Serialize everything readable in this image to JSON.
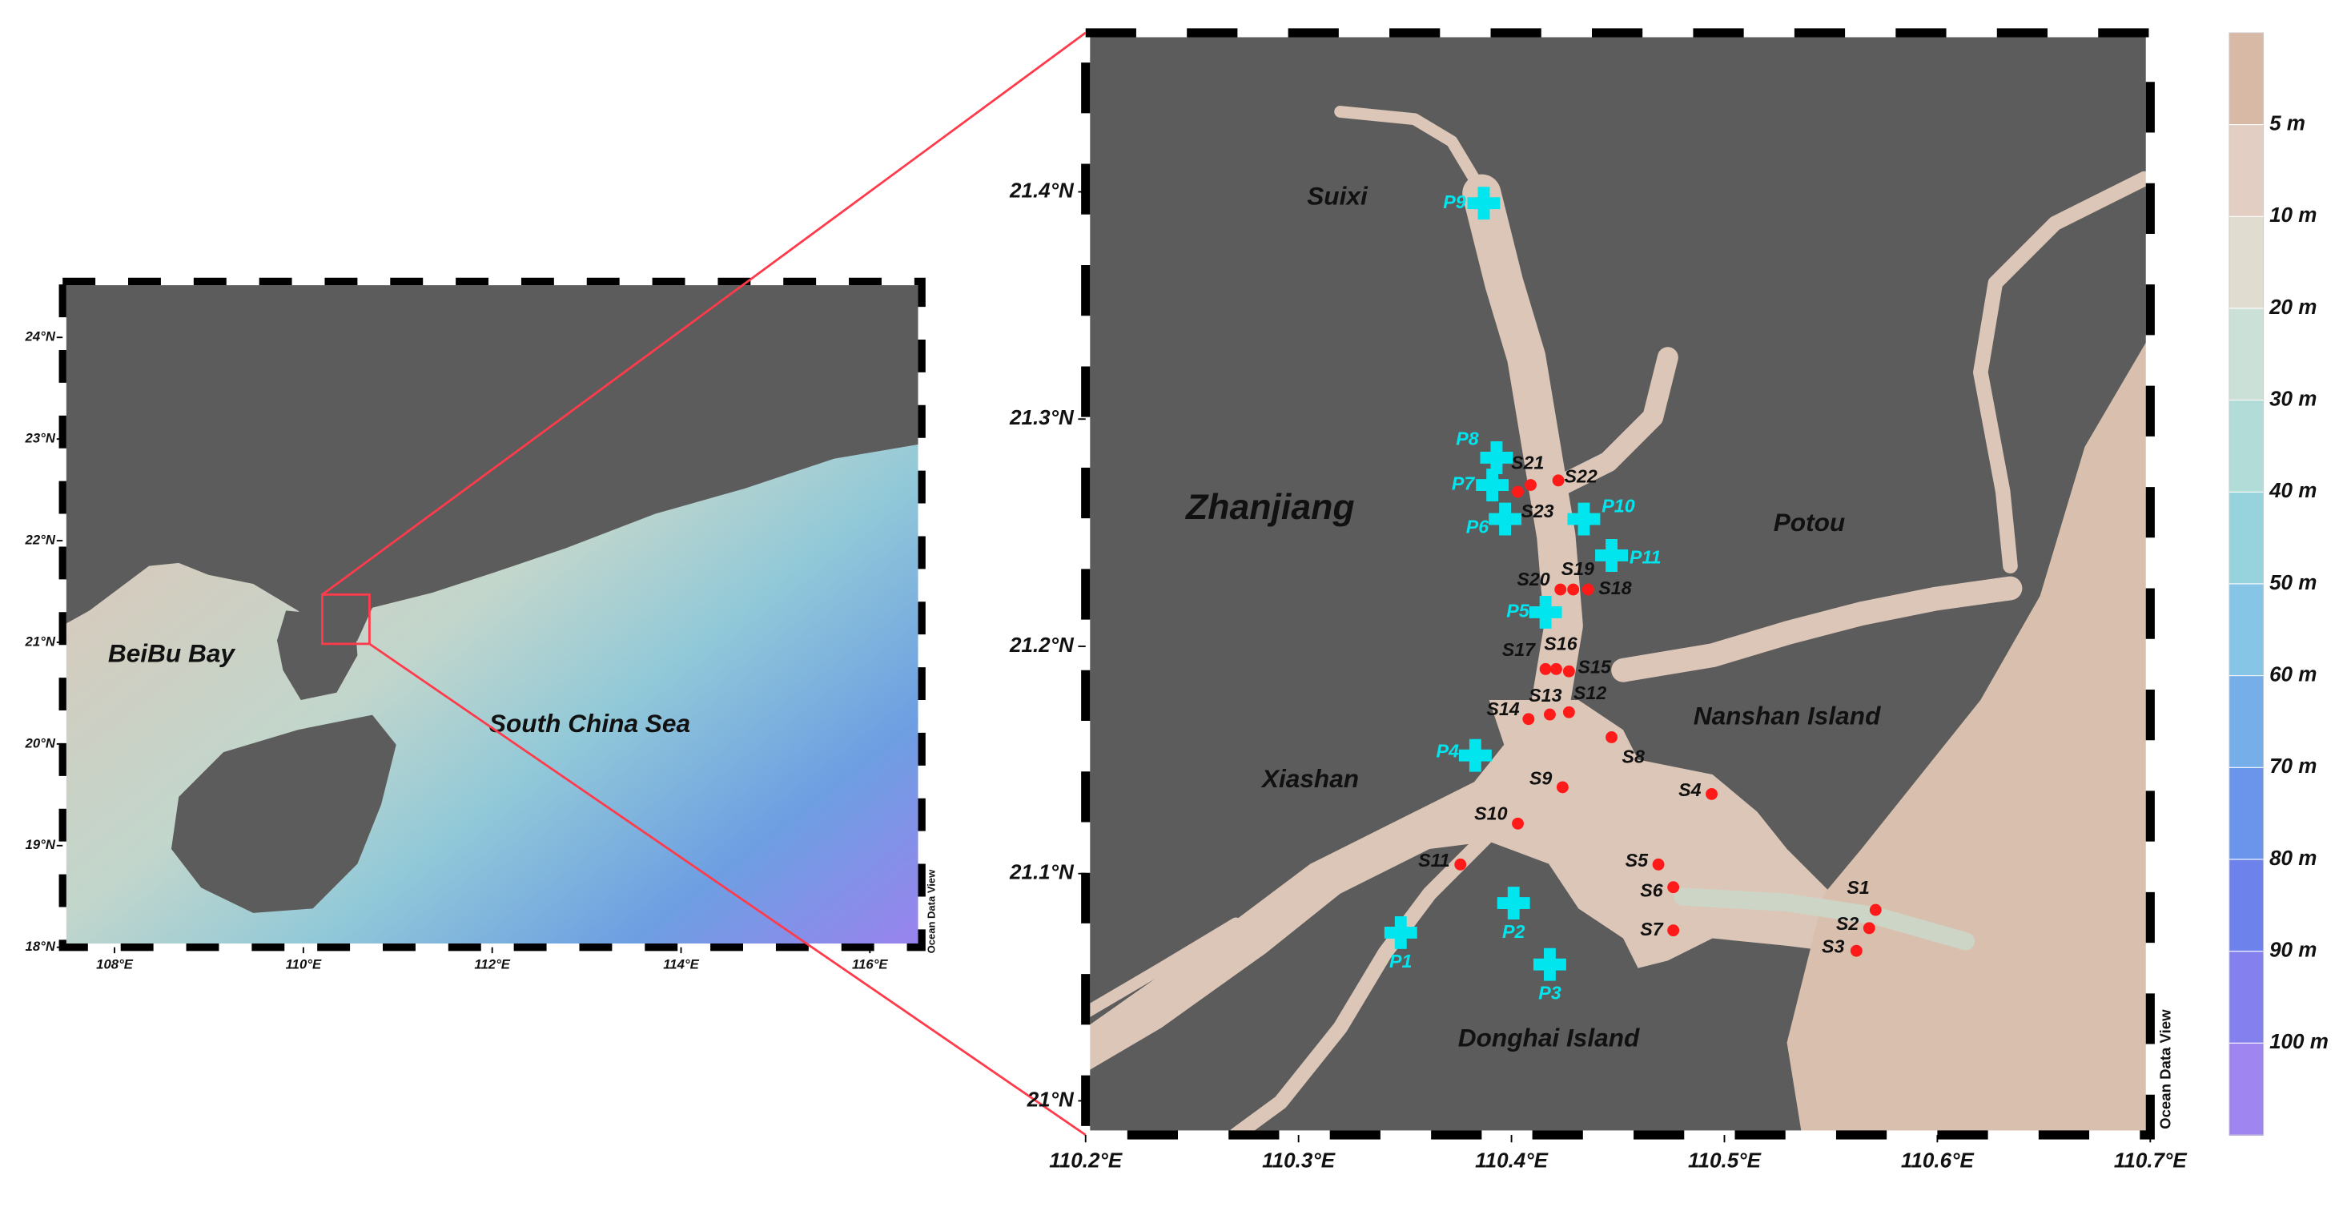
{
  "overview_map": {
    "xlim": [
      107.45,
      116.55
    ],
    "ylim": [
      18,
      24.55
    ],
    "xticks": [
      {
        "value": 108,
        "label": "108°E"
      },
      {
        "value": 110,
        "label": "110°E"
      },
      {
        "value": 112,
        "label": "112°E"
      },
      {
        "value": 114,
        "label": "114°E"
      },
      {
        "value": 116,
        "label": "116°E"
      }
    ],
    "yticks": [
      {
        "value": 18,
        "label": "18°N"
      },
      {
        "value": 19,
        "label": "19°N"
      },
      {
        "value": 20,
        "label": "20°N"
      },
      {
        "value": 21,
        "label": "21°N"
      },
      {
        "value": 22,
        "label": "22°N"
      },
      {
        "value": 23,
        "label": "23°N"
      },
      {
        "value": 24,
        "label": "24°N"
      }
    ],
    "labels": [
      "BeiBu Bay",
      "South China Sea"
    ],
    "credit": "Ocean Data View"
  },
  "detail_map": {
    "xlim": [
      110.2,
      110.7
    ],
    "ylim": [
      20.985,
      21.47
    ],
    "xticks": [
      {
        "value": 110.2,
        "label": "110.2°E"
      },
      {
        "value": 110.3,
        "label": "110.3°E"
      },
      {
        "value": 110.4,
        "label": "110.4°E"
      },
      {
        "value": 110.5,
        "label": "110.5°E"
      },
      {
        "value": 110.6,
        "label": "110.6°E"
      },
      {
        "value": 110.7,
        "label": "110.7°E"
      }
    ],
    "yticks": [
      {
        "value": 21.0,
        "label": "21°N"
      },
      {
        "value": 21.1,
        "label": "21.1°N"
      },
      {
        "value": 21.2,
        "label": "21.2°N"
      },
      {
        "value": 21.3,
        "label": "21.3°N"
      },
      {
        "value": 21.4,
        "label": "21.4°N"
      }
    ],
    "places": [
      "Suixi",
      "Zhanjiang",
      "Potou",
      "Nanshan Island",
      "Xiashan",
      "Donghai Island"
    ],
    "s_sites": {
      "color": "#ff1a1a",
      "points": [
        {
          "name": "S1",
          "lon": 110.571,
          "lat": 21.084
        },
        {
          "name": "S2",
          "lon": 110.568,
          "lat": 21.076
        },
        {
          "name": "S3",
          "lon": 110.562,
          "lat": 21.066
        },
        {
          "name": "S4",
          "lon": 110.494,
          "lat": 21.135
        },
        {
          "name": "S5",
          "lon": 110.469,
          "lat": 21.104
        },
        {
          "name": "S6",
          "lon": 110.476,
          "lat": 21.094
        },
        {
          "name": "S7",
          "lon": 110.476,
          "lat": 21.075
        },
        {
          "name": "S8",
          "lon": 110.447,
          "lat": 21.16
        },
        {
          "name": "S9",
          "lon": 110.424,
          "lat": 21.138
        },
        {
          "name": "S10",
          "lon": 110.403,
          "lat": 21.122
        },
        {
          "name": "S11",
          "lon": 110.376,
          "lat": 21.104
        },
        {
          "name": "S12",
          "lon": 110.427,
          "lat": 21.171
        },
        {
          "name": "S13",
          "lon": 110.418,
          "lat": 21.17
        },
        {
          "name": "S14",
          "lon": 110.408,
          "lat": 21.168
        },
        {
          "name": "S15",
          "lon": 110.427,
          "lat": 21.189
        },
        {
          "name": "S16",
          "lon": 110.421,
          "lat": 21.19
        },
        {
          "name": "S17",
          "lon": 110.416,
          "lat": 21.19
        },
        {
          "name": "S18",
          "lon": 110.436,
          "lat": 21.225
        },
        {
          "name": "S19",
          "lon": 110.429,
          "lat": 21.225
        },
        {
          "name": "S20",
          "lon": 110.423,
          "lat": 21.225
        },
        {
          "name": "S21",
          "lon": 110.409,
          "lat": 21.271
        },
        {
          "name": "S22",
          "lon": 110.422,
          "lat": 21.273
        },
        {
          "name": "S23",
          "lon": 110.403,
          "lat": 21.268
        }
      ]
    },
    "p_sites": {
      "color": "#00e5ee",
      "points": [
        {
          "name": "P1",
          "lon": 110.348,
          "lat": 21.074
        },
        {
          "name": "P2",
          "lon": 110.401,
          "lat": 21.087
        },
        {
          "name": "P3",
          "lon": 110.418,
          "lat": 21.06
        },
        {
          "name": "P4",
          "lon": 110.383,
          "lat": 21.152
        },
        {
          "name": "P5",
          "lon": 110.416,
          "lat": 21.215
        },
        {
          "name": "P6",
          "lon": 110.397,
          "lat": 21.256
        },
        {
          "name": "P7",
          "lon": 110.391,
          "lat": 21.271
        },
        {
          "name": "P8",
          "lon": 110.393,
          "lat": 21.283
        },
        {
          "name": "P9",
          "lon": 110.387,
          "lat": 21.395
        },
        {
          "name": "P10",
          "lon": 110.434,
          "lat": 21.256
        },
        {
          "name": "P11",
          "lon": 110.447,
          "lat": 21.24
        }
      ]
    },
    "credit": "Ocean Data View"
  },
  "depth_scale": {
    "ticks": [
      {
        "value": 5,
        "label": "5 m"
      },
      {
        "value": 10,
        "label": "10 m"
      },
      {
        "value": 20,
        "label": "20 m"
      },
      {
        "value": 30,
        "label": "30 m"
      },
      {
        "value": 40,
        "label": "40 m"
      },
      {
        "value": 50,
        "label": "50 m"
      },
      {
        "value": 60,
        "label": "60 m"
      },
      {
        "value": 70,
        "label": "70 m"
      },
      {
        "value": 80,
        "label": "80 m"
      },
      {
        "value": 90,
        "label": "90 m"
      },
      {
        "value": 100,
        "label": "100 m"
      }
    ],
    "colors": [
      "#d8b9a6",
      "#e2cec2",
      "#e0dccf",
      "#cbe0d6",
      "#b1dcd7",
      "#97d3dc",
      "#86c5e6",
      "#76aee9",
      "#6a95ea",
      "#6d83eb",
      "#8481ee",
      "#9f85f0"
    ]
  }
}
